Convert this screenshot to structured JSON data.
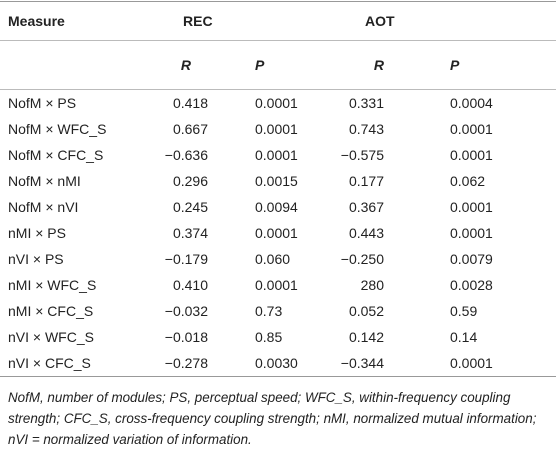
{
  "table": {
    "header": [
      "Measure",
      "REC",
      "AOT"
    ],
    "subheader": [
      "R",
      "P",
      "R",
      "P"
    ],
    "rows": [
      [
        "NofM × PS",
        "0.418",
        "0.0001",
        "0.331",
        "0.0004"
      ],
      [
        "NofM × WFC_S",
        "0.667",
        "0.0001",
        "0.743",
        "0.0001"
      ],
      [
        "NofM × CFC_S",
        "−0.636",
        "0.0001",
        "−0.575",
        "0.0001"
      ],
      [
        "NofM × nMI",
        "0.296",
        "0.0015",
        "0.177",
        "0.062"
      ],
      [
        "NofM × nVI",
        "0.245",
        "0.0094",
        "0.367",
        "0.0001"
      ],
      [
        "nMI × PS",
        "0.374",
        "0.0001",
        "0.443",
        "0.0001"
      ],
      [
        "nVI × PS",
        "−0.179",
        "0.060",
        "−0.250",
        "0.0079"
      ],
      [
        "nMI × WFC_S",
        "0.410",
        "0.0001",
        "280",
        "0.0028"
      ],
      [
        "nMI × CFC_S",
        "−0.032",
        "0.73",
        "0.052",
        "0.59"
      ],
      [
        "nVI × WFC_S",
        "−0.018",
        "0.85",
        "0.142",
        "0.14"
      ],
      [
        "nVI × CFC_S",
        "−0.278",
        "0.0030",
        "−0.344",
        "0.0001"
      ]
    ],
    "footnote": "NofM, number of modules; PS, perceptual speed; WFC_S, within-frequency coupling strength; CFC_S, cross-frequency coupling strength; nMI, normalized mutual information; nVI = normalized variation of information."
  }
}
